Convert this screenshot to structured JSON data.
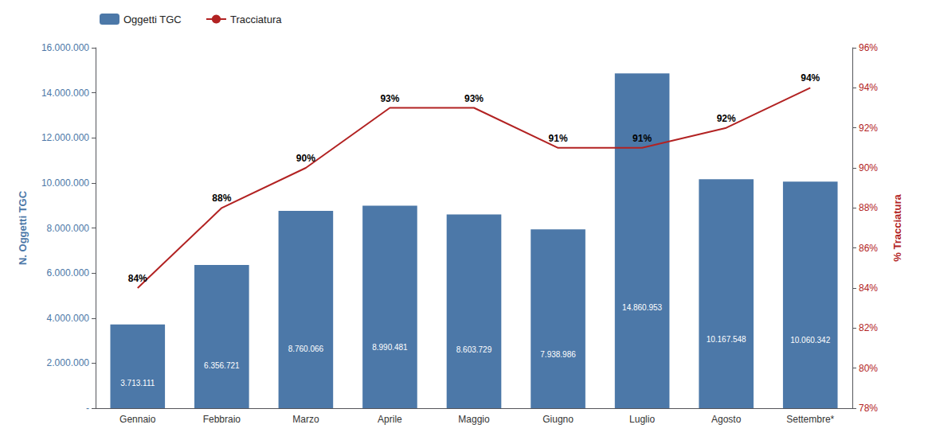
{
  "chart_data": {
    "type": "bar",
    "categories": [
      "Gennaio",
      "Febbraio",
      "Marzo",
      "Aprile",
      "Maggio",
      "Giugno",
      "Luglio",
      "Agosto",
      "Settembre*"
    ],
    "series": [
      {
        "name": "Oggetti TGC",
        "type": "bar",
        "color": "#4c78a8",
        "values": [
          3713111,
          6356721,
          8760066,
          8990481,
          8603729,
          7938986,
          14860953,
          10167548,
          10060342
        ],
        "value_labels": [
          "3.713.111",
          "6.356.721",
          "8.760.066",
          "8.990.481",
          "8.603.729",
          "7.938.986",
          "14.860.953",
          "10.167.548",
          "10.060.342"
        ]
      },
      {
        "name": "Tracciatura",
        "type": "line",
        "axis": "y2",
        "color": "#b22222",
        "marker": "none",
        "values": [
          84,
          88,
          90,
          93,
          93,
          91,
          91,
          92,
          94
        ],
        "value_labels": [
          "84%",
          "88%",
          "90%",
          "93%",
          "93%",
          "91%",
          "91%",
          "92%",
          "94%"
        ]
      }
    ],
    "ylabel": "N. Oggetti TGC",
    "y2label": "% Tracciatura",
    "ylim": [
      0,
      16000000
    ],
    "yticks": [
      {
        "value": 0,
        "label": "-"
      },
      {
        "value": 2000000,
        "label": "2.000.000"
      },
      {
        "value": 4000000,
        "label": "4.000.000"
      },
      {
        "value": 6000000,
        "label": "6.000.000"
      },
      {
        "value": 8000000,
        "label": "8.000.000"
      },
      {
        "value": 10000000,
        "label": "10.000.000"
      },
      {
        "value": 12000000,
        "label": "12.000.000"
      },
      {
        "value": 14000000,
        "label": "14.000.000"
      },
      {
        "value": 16000000,
        "label": "16.000.000"
      }
    ],
    "y2lim": [
      78,
      96
    ],
    "y2ticks": [
      {
        "value": 78,
        "label": "78%"
      },
      {
        "value": 80,
        "label": "80%"
      },
      {
        "value": 82,
        "label": "82%"
      },
      {
        "value": 84,
        "label": "84%"
      },
      {
        "value": 86,
        "label": "86%"
      },
      {
        "value": 88,
        "label": "88%"
      },
      {
        "value": 90,
        "label": "90%"
      },
      {
        "value": 92,
        "label": "92%"
      },
      {
        "value": 94,
        "label": "94%"
      },
      {
        "value": 96,
        "label": "96%"
      }
    ],
    "data_labels": true,
    "legend": "upper left",
    "grid": false
  }
}
